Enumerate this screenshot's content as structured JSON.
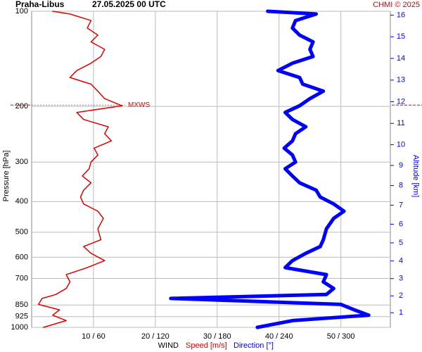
{
  "chart_data": {
    "type": "profile",
    "station": "Praha-Libus",
    "title": "27.05.2025 00 UTC",
    "credit": "CHMI © 2025",
    "ylabel": "Pressure [hPa]",
    "y2label": "Altitude [km]",
    "xlabel": "WIND",
    "log_y": true,
    "grid": true,
    "ylim": [
      1000,
      100
    ],
    "yticks": [
      100,
      200,
      300,
      400,
      500,
      600,
      700,
      850,
      925,
      1000
    ],
    "y2ticks": [
      1,
      2,
      3,
      4,
      5,
      6,
      7,
      8,
      9,
      10,
      11,
      12,
      13,
      14,
      15,
      16
    ],
    "xlim": [
      0,
      58
    ],
    "x2lim": [
      0,
      348
    ],
    "xticks": [
      {
        "value": 10,
        "label": "10 / 60"
      },
      {
        "value": 20,
        "label": "20 / 120"
      },
      {
        "value": 30,
        "label": "30 / 180"
      },
      {
        "value": 40,
        "label": "40 / 240"
      },
      {
        "value": 50,
        "label": "50 / 300"
      }
    ],
    "max_wind": {
      "label": "MXWS",
      "pressure": 198
    },
    "levels": [
      1000,
      952,
      915,
      880,
      846,
      810,
      787,
      753,
      718,
      681,
      647,
      615,
      583,
      555,
      528,
      488,
      452,
      429,
      407,
      387,
      368,
      349,
      332,
      315,
      300,
      285,
      271,
      257,
      244,
      232,
      220,
      209,
      199,
      189,
      179,
      170,
      162,
      154,
      146,
      139,
      132,
      125,
      119,
      113,
      107,
      102,
      100
    ],
    "series": [
      {
        "name": "Speed [m/s]",
        "color": "#e00000",
        "width": 1.5,
        "values": [
          1.9,
          5.6,
          3.4,
          4.5,
          1.1,
          1.7,
          3.9,
          5.6,
          6.2,
          5.6,
          9.0,
          11.8,
          9.6,
          8.4,
          11.2,
          10.7,
          11.6,
          10.7,
          8.4,
          7.9,
          8.4,
          9.6,
          8.2,
          9.3,
          9.6,
          10.7,
          10.1,
          12.9,
          11.8,
          12.4,
          8.4,
          7.3,
          14.6,
          11.8,
          10.7,
          9.6,
          6.2,
          7.3,
          9.6,
          11.2,
          11.8,
          9.6,
          10.7,
          9.0,
          9.6,
          6.2,
          3.4
        ]
      },
      {
        "name": "Direction [°]",
        "color": "#0000ff",
        "width": 5,
        "axis": "x2",
        "values": [
          219,
          253,
          327,
          313,
          300,
          135,
          286,
          293,
          283,
          286,
          246,
          253,
          266,
          280,
          283,
          286,
          293,
          303,
          293,
          280,
          276,
          260,
          253,
          246,
          256,
          253,
          245,
          253,
          256,
          266,
          253,
          246,
          260,
          270,
          283,
          263,
          260,
          239,
          253,
          273,
          270,
          273,
          260,
          253,
          256,
          276,
          229
        ]
      }
    ]
  }
}
